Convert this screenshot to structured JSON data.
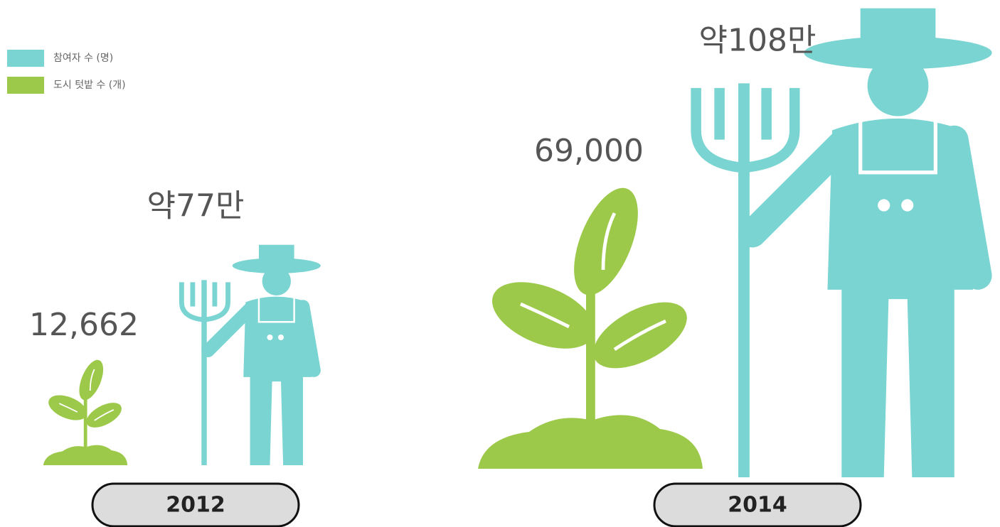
{
  "chart_data": {
    "type": "pictogram",
    "categories": [
      "2012",
      "2014"
    ],
    "series": [
      {
        "name": "참여자 수 (명)",
        "color": "#7ad4d2",
        "values": [
          770000,
          1080000
        ],
        "value_labels": [
          "약77만",
          "약108만"
        ]
      },
      {
        "name": "도시 텃밭 수 (개)",
        "color": "#9dc94a",
        "values": [
          12662,
          69000
        ],
        "value_labels": [
          "12,662",
          "69,000"
        ]
      }
    ]
  }
}
